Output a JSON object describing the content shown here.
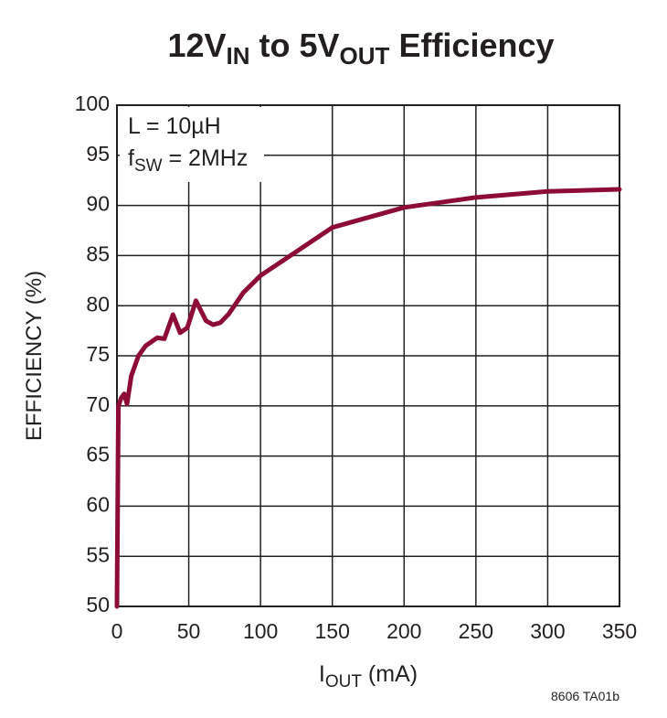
{
  "chart_data": {
    "type": "line",
    "title": [
      "12V",
      "IN",
      " to 5V",
      "OUT",
      " Efficiency"
    ],
    "xlabel": [
      "I",
      "OUT",
      " (mA)"
    ],
    "ylabel": "EFFICIENCY (%)",
    "annotations": [
      "L = 10µH",
      [
        "f",
        "SW",
        " = 2MHz"
      ]
    ],
    "footnote": "8606 TA01b",
    "x": [
      0,
      1,
      3,
      5,
      7,
      10,
      15,
      20,
      28,
      33,
      39,
      44,
      49,
      55,
      62,
      67,
      72,
      78,
      88,
      100,
      125,
      150,
      200,
      250,
      300,
      350
    ],
    "values": [
      50,
      70,
      70.8,
      71.2,
      70.2,
      73,
      75,
      76,
      76.8,
      76.7,
      79.1,
      77.3,
      77.8,
      80.5,
      78.5,
      78.1,
      78.3,
      79.2,
      81.3,
      83,
      85.4,
      87.8,
      89.8,
      90.8,
      91.4,
      91.6
    ],
    "color": "#8c0c36",
    "xlim": [
      0,
      350
    ],
    "xticks": [
      0,
      50,
      100,
      150,
      200,
      250,
      300,
      350
    ],
    "ylim": [
      50,
      100
    ],
    "yticks": [
      50,
      55,
      60,
      65,
      70,
      75,
      80,
      85,
      90,
      95,
      100
    ],
    "grid": true
  }
}
